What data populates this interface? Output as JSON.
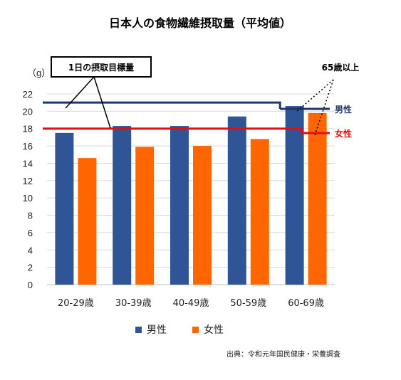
{
  "chart_data": {
    "type": "bar",
    "title": "日本人の食物繊維摂取量（平均値）",
    "ylabel": "（g）",
    "ylim": [
      0,
      22
    ],
    "yticks": [
      0,
      2,
      4,
      6,
      8,
      10,
      12,
      14,
      16,
      18,
      20,
      22
    ],
    "categories": [
      "20-29歳",
      "30-39歳",
      "40-49歳",
      "50-59歳",
      "60-69歳"
    ],
    "series": [
      {
        "name": "男性",
        "color": "#2F5597",
        "values": [
          17.5,
          18.3,
          18.3,
          19.4,
          20.6
        ]
      },
      {
        "name": "女性",
        "color": "#FF6600",
        "values": [
          14.6,
          15.9,
          16.0,
          16.8,
          19.8
        ]
      }
    ],
    "target_lines": [
      {
        "label": "男性",
        "value": 21,
        "color": "#1F3864"
      },
      {
        "label": "女性",
        "value": 18,
        "color": "#E01010"
      }
    ],
    "grid": true,
    "legend": "bottom"
  },
  "annotations": {
    "target_box": "1日の摂取目標量",
    "age65": "65歳以上"
  },
  "source": "出典：令和元年国民健康・栄養調査"
}
